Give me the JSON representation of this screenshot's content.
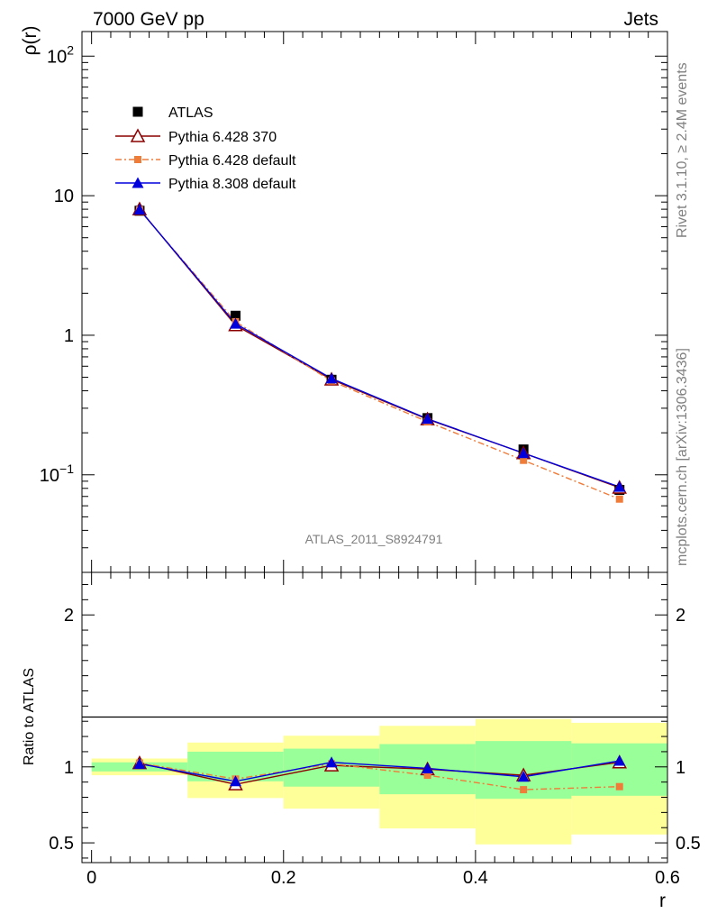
{
  "header": {
    "title_left": "7000 GeV pp",
    "title_right": "Jets",
    "side_top": "Rivet 3.1.10, ≥ 2.4M events",
    "side_bottom": "mcplots.cern.ch [arXiv:1306.3436]",
    "watermark": "ATLAS_2011_S8924791"
  },
  "chart_data": [
    {
      "type": "line",
      "panel": "main",
      "ylabel": "ρ(r)",
      "yscale": "log",
      "ylim": [
        0.02,
        150
      ],
      "xlim": [
        -0.01,
        0.6
      ],
      "yticks": [
        {
          "v": 100,
          "base": "10",
          "exp": "2"
        },
        {
          "v": 10,
          "base": "10",
          "exp": ""
        },
        {
          "v": 1,
          "base": "1",
          "exp": ""
        },
        {
          "v": 0.1,
          "base": "10",
          "exp": "−1"
        }
      ],
      "legend_position": "top-left",
      "x": [
        0.05,
        0.15,
        0.25,
        0.35,
        0.45,
        0.55
      ],
      "series": [
        {
          "name": "ATLAS",
          "color": "#000000",
          "marker": "square",
          "line": "none",
          "values": [
            7.8,
            1.38,
            0.48,
            0.255,
            0.152,
            0.078
          ]
        },
        {
          "name": "Pythia 6.428 370",
          "color": "#8b0000",
          "marker": "open-triangle",
          "line": "solid",
          "values": [
            8.0,
            1.18,
            0.482,
            0.25,
            0.143,
            0.081
          ]
        },
        {
          "name": "Pythia 6.428 default",
          "color": "#f07c3a",
          "marker": "small-square",
          "line": "dashdot",
          "values": [
            7.9,
            1.25,
            0.47,
            0.24,
            0.127,
            0.067
          ]
        },
        {
          "name": "Pythia 8.308 default",
          "color": "#0000dd",
          "marker": "filled-triangle",
          "line": "solid",
          "values": [
            7.95,
            1.21,
            0.49,
            0.252,
            0.143,
            0.082
          ]
        }
      ]
    },
    {
      "type": "line",
      "panel": "ratio",
      "ylabel": "Ratio to ATLAS",
      "xlabel": "r",
      "ylim": [
        0.37,
        2.28
      ],
      "xlim": [
        -0.01,
        0.6
      ],
      "yticks": [
        0.5,
        1,
        2
      ],
      "ytick_labels": [
        "0.5",
        "1",
        "2"
      ],
      "xticks": [
        0,
        0.2,
        0.4,
        0.6
      ],
      "xtick_labels": [
        "0",
        "0.2",
        "0.4",
        "0.6"
      ],
      "bins": [
        [
          0.0,
          0.1
        ],
        [
          0.1,
          0.2
        ],
        [
          0.2,
          0.3
        ],
        [
          0.3,
          0.4
        ],
        [
          0.4,
          0.5
        ],
        [
          0.5,
          0.6
        ]
      ],
      "band_green": [
        [
          0.97,
          1.03
        ],
        [
          0.905,
          1.1
        ],
        [
          0.87,
          1.12
        ],
        [
          0.82,
          1.15
        ],
        [
          0.79,
          1.17
        ],
        [
          0.81,
          1.155
        ]
      ],
      "band_yellow": [
        [
          0.945,
          1.055
        ],
        [
          0.795,
          1.16
        ],
        [
          0.725,
          1.205
        ],
        [
          0.595,
          1.27
        ],
        [
          0.49,
          1.315
        ],
        [
          0.555,
          1.29
        ]
      ],
      "band_green_color": "#99ff99",
      "band_yellow_color": "#ffff99",
      "x": [
        0.05,
        0.15,
        0.25,
        0.35,
        0.45,
        0.55
      ],
      "series": [
        {
          "name": "Pythia 6.428 370",
          "color": "#8b0000",
          "marker": "open-triangle",
          "line": "solid",
          "values": [
            1.025,
            0.885,
            1.01,
            0.985,
            0.945,
            1.03
          ]
        },
        {
          "name": "Pythia 6.428 default",
          "color": "#f07c3a",
          "marker": "small-square",
          "line": "dashdot",
          "values": [
            1.025,
            0.92,
            1.02,
            0.945,
            0.85,
            0.87
          ]
        },
        {
          "name": "Pythia 8.308 default",
          "color": "#0000dd",
          "marker": "filled-triangle",
          "line": "solid",
          "values": [
            1.02,
            0.905,
            1.03,
            0.99,
            0.935,
            1.04
          ]
        }
      ]
    }
  ]
}
